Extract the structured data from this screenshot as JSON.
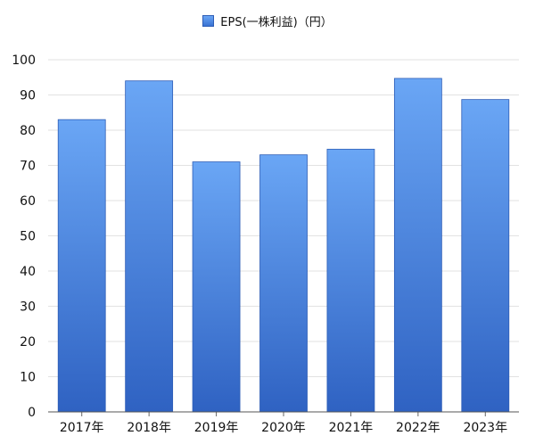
{
  "chart_data": {
    "type": "bar",
    "title": "",
    "xlabel": "",
    "ylabel": "",
    "legend": {
      "position": "top-center",
      "entries": [
        "EPS(一株利益)（円）"
      ]
    },
    "categories": [
      "2017年",
      "2018年",
      "2019年",
      "2020年",
      "2021年",
      "2022年",
      "2023年"
    ],
    "series": [
      {
        "name": "EPS(一株利益)（円）",
        "values": [
          83,
          94,
          71,
          73,
          74.6,
          94.7,
          88.7
        ],
        "color_top": "#6aa6f5",
        "color_bottom": "#2f62c2"
      }
    ],
    "ylim": [
      0,
      100
    ],
    "yticks": [
      0,
      10,
      20,
      30,
      40,
      50,
      60,
      70,
      80,
      90,
      100
    ],
    "grid": true
  }
}
